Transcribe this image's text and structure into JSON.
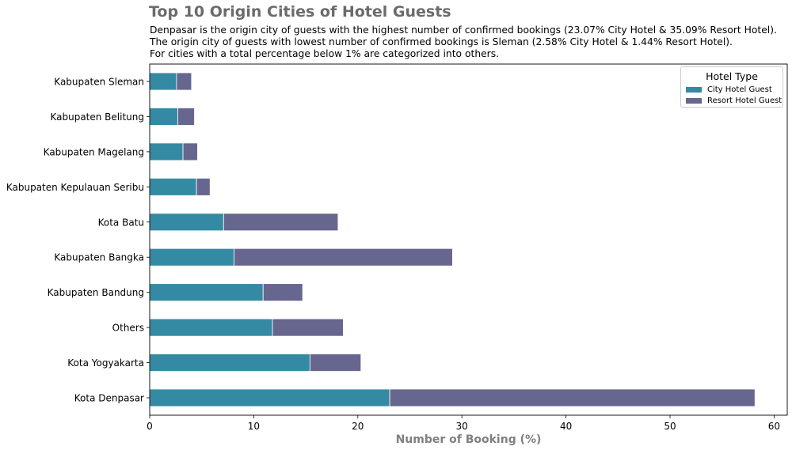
{
  "title": "Top 10 Origin Cities of Hotel Guests",
  "subtitle": [
    "Denpasar is the origin city of guests with the highest number of confirmed bookings (23.07% City Hotel & 35.09% Resort Hotel).",
    "The origin city of guests with lowest number of confirmed bookings is Sleman (2.58% City Hotel & 1.44% Resort Hotel).",
    "For cities with a total percentage below 1% are categorized into others."
  ],
  "legend": {
    "title": "Hotel Type",
    "position": "top-right"
  },
  "colors": {
    "city": "#358aa3",
    "resort": "#67668e",
    "title": "#6b6b6b",
    "xlabel": "#808080"
  },
  "chart_data": {
    "type": "bar",
    "orientation": "horizontal",
    "stacked": true,
    "title": "Top 10 Origin Cities of Hotel Guests",
    "xlabel": "Number of Booking (%)",
    "ylabel": "",
    "xlim": [
      0,
      61
    ],
    "xticks": [
      0,
      10,
      20,
      30,
      40,
      50,
      60
    ],
    "grid": false,
    "categories": [
      "Kota Denpasar",
      "Kota Yogyakarta",
      "Others",
      "Kabupaten Bandung",
      "Kabupaten Bangka",
      "Kota Batu",
      "Kabupaten Kepulauan Seribu",
      "Kabupaten Magelang",
      "Kabupaten Belitung",
      "Kabupaten Sleman"
    ],
    "series": [
      {
        "name": "City Hotel Guest",
        "values": [
          23.07,
          15.4,
          11.8,
          10.9,
          8.1,
          7.1,
          4.5,
          3.2,
          2.7,
          2.58
        ]
      },
      {
        "name": "Resort Hotel Guest",
        "values": [
          35.09,
          4.9,
          6.8,
          3.8,
          21.0,
          11.0,
          1.3,
          1.4,
          1.6,
          1.44
        ]
      }
    ]
  }
}
